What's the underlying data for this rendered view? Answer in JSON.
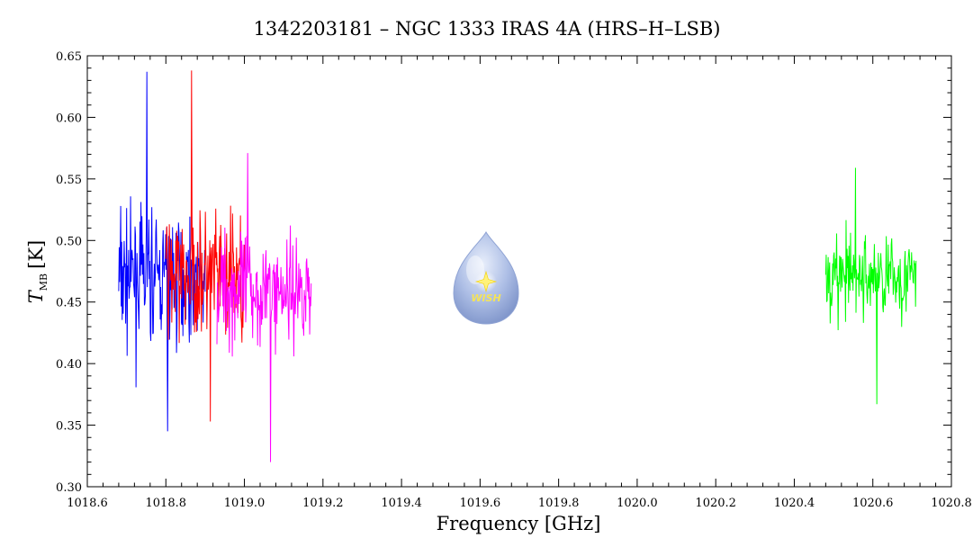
{
  "chart_data": {
    "type": "line",
    "title": "1342203181 – NGC 1333 IRAS 4A (HRS–H–LSB)",
    "xlabel": "Frequency [GHz]",
    "ylabel": {
      "symbol": "T",
      "subscript": "MB",
      "unit": "[K]"
    },
    "xlim": [
      1018.6,
      1020.8
    ],
    "ylim": [
      0.3,
      0.65
    ],
    "x_ticks": [
      1018.6,
      1018.8,
      1019.0,
      1019.2,
      1019.4,
      1019.6,
      1019.8,
      1020.0,
      1020.2,
      1020.4,
      1020.6,
      1020.8
    ],
    "x_tick_labels": [
      "1018.6",
      "1018.8",
      "1019.0",
      "1019.2",
      "1019.4",
      "1019.6",
      "1019.8",
      "1020.0",
      "1020.2",
      "1020.4",
      "1020.6",
      "1020.8"
    ],
    "y_ticks": [
      0.3,
      0.35,
      0.4,
      0.45,
      0.5,
      0.55,
      0.6,
      0.65
    ],
    "y_tick_labels": [
      "0.30",
      "0.35",
      "0.40",
      "0.45",
      "0.50",
      "0.55",
      "0.60",
      "0.65"
    ],
    "grid": false,
    "legend": "none",
    "series": [
      {
        "color": "#0000ff",
        "x": [
          1018.68,
          1018.9
        ],
        "y_mean": 0.47,
        "y_min": 0.345,
        "y_max": 0.637
      },
      {
        "color": "#ff0000",
        "x": [
          1018.8,
          1019.0
        ],
        "y_mean": 0.47,
        "y_min": 0.353,
        "y_max": 0.638
      },
      {
        "color": "#ff00ff",
        "x": [
          1018.93,
          1019.17
        ],
        "y_mean": 0.46,
        "y_min": 0.32,
        "y_max": 0.571
      },
      {
        "color": "#00ff00",
        "x": [
          1020.48,
          1020.71
        ],
        "y_mean": 0.47,
        "y_min": 0.367,
        "y_max": 0.559
      }
    ],
    "watermark": {
      "text": "WISH"
    }
  }
}
